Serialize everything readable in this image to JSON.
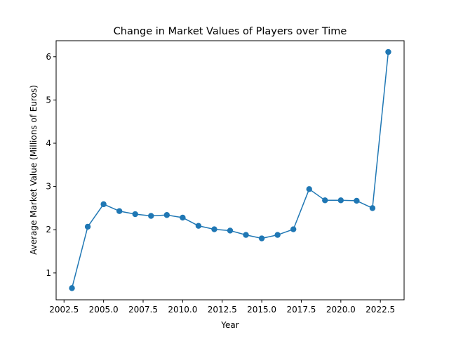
{
  "chart_data": {
    "type": "line",
    "title": "Change in Market Values of Players over Time",
    "xlabel": "Year",
    "ylabel": "Average Market Value (Millions of Euros)",
    "x_ticks": [
      "2002.5",
      "2005.0",
      "2007.5",
      "2010.0",
      "2012.5",
      "2015.0",
      "2017.5",
      "2020.0",
      "2022.5"
    ],
    "y_ticks": [
      "1",
      "2",
      "3",
      "4",
      "5",
      "6"
    ],
    "xlim": [
      2002.0,
      2024.0
    ],
    "ylim": [
      0.38,
      6.37
    ],
    "grid": false,
    "series": [
      {
        "marker": "circle",
        "color": "#1f77b4",
        "x": [
          2003,
          2004,
          2005,
          2006,
          2007,
          2008,
          2009,
          2010,
          2011,
          2012,
          2013,
          2014,
          2015,
          2016,
          2017,
          2018,
          2019,
          2020,
          2021,
          2022,
          2023
        ],
        "y": [
          0.65,
          2.07,
          2.59,
          2.43,
          2.36,
          2.32,
          2.34,
          2.28,
          2.09,
          2.01,
          1.98,
          1.88,
          1.8,
          1.88,
          2.01,
          2.94,
          2.68,
          2.68,
          2.67,
          2.5,
          6.11
        ]
      }
    ]
  }
}
